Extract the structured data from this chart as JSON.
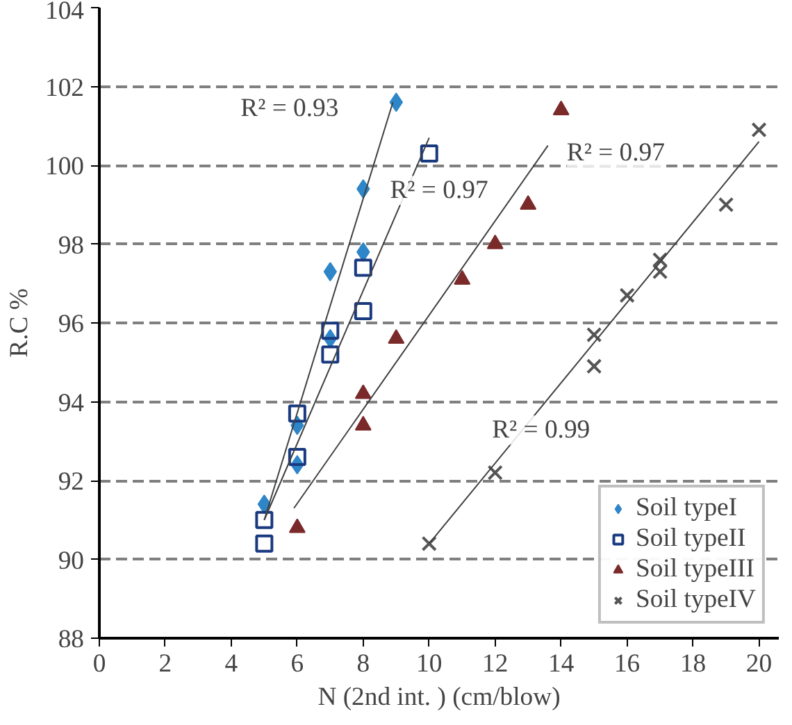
{
  "chart_data": {
    "type": "scatter",
    "xlabel": "N (2nd int. ) (cm/blow)",
    "ylabel": "R.C %",
    "xlim": [
      0,
      20.6
    ],
    "ylim": [
      88,
      104
    ],
    "xticks": [
      0,
      2,
      4,
      6,
      8,
      10,
      12,
      14,
      16,
      18,
      20
    ],
    "yticks": [
      88,
      90,
      92,
      94,
      96,
      98,
      100,
      102,
      104
    ],
    "grid": "y",
    "legend": "bottom right",
    "series": [
      {
        "name": "Soil typeI",
        "color": "#2e86c8",
        "marker": "diamond",
        "x": [
          5,
          6,
          6,
          7,
          7,
          8,
          8,
          9
        ],
        "values": [
          91.4,
          93.4,
          92.4,
          97.3,
          95.6,
          99.4,
          97.8,
          101.6
        ]
      },
      {
        "name": "Soil typeII",
        "color": "#1a3a80",
        "marker": "square",
        "x": [
          5,
          5,
          6,
          6,
          7,
          7,
          8,
          8,
          10
        ],
        "values": [
          91.0,
          90.4,
          93.7,
          92.6,
          95.8,
          95.2,
          97.4,
          96.3,
          100.3
        ]
      },
      {
        "name": "Soil typeIII",
        "color": "#7b2a2a",
        "marker": "triangle",
        "x": [
          6,
          8,
          8,
          9,
          11,
          12,
          13,
          14
        ],
        "values": [
          90.8,
          94.2,
          93.4,
          95.6,
          97.1,
          98.0,
          99.0,
          101.4
        ]
      },
      {
        "name": "Soil typeIV",
        "color": "#555555",
        "marker": "cross",
        "x": [
          10,
          12,
          15,
          15,
          16,
          17,
          17,
          19,
          20
        ],
        "values": [
          90.4,
          92.2,
          95.7,
          94.9,
          96.7,
          97.6,
          97.3,
          99.0,
          100.9
        ]
      },
      {
        "type": "line",
        "color": "#404040",
        "x": [
          5,
          8.9
        ],
        "values": [
          91.0,
          101.6
        ]
      },
      {
        "type": "line",
        "color": "#404040",
        "x": [
          5,
          10
        ],
        "values": [
          91.0,
          100.7
        ]
      },
      {
        "type": "line",
        "color": "#404040",
        "x": [
          5.9,
          13.6
        ],
        "values": [
          91.3,
          100.5
        ]
      },
      {
        "type": "line",
        "color": "#404040",
        "x": [
          10,
          20
        ],
        "values": [
          90.4,
          100.6
        ]
      }
    ],
    "annotations": [
      "R² = 0.93",
      "R² = 0.97",
      "R² = 0.97",
      "R² = 0.99"
    ]
  }
}
